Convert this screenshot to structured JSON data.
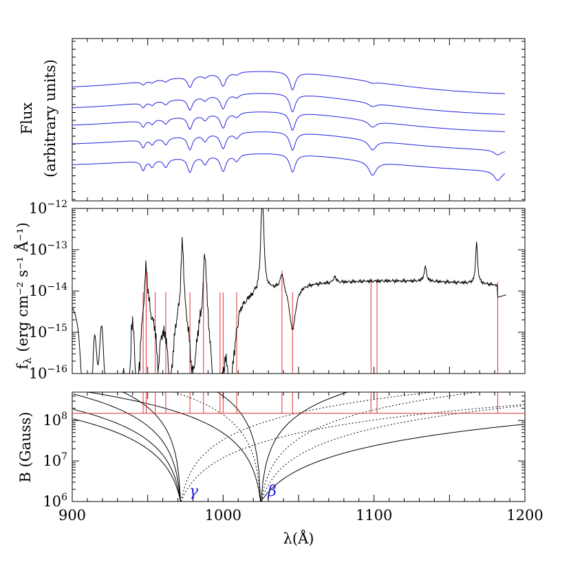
{
  "chart_data": [
    {
      "type": "line",
      "panel": "model-spectra",
      "ylabel_line1": "Flux",
      "ylabel_line2": "(arbitrary units)",
      "xlim": [
        900,
        1200
      ],
      "series_count": 5,
      "series_color": "#2020e0",
      "features_A": [
        947,
        953,
        962,
        978,
        988,
        1000,
        1009,
        1046,
        1099,
        1182
      ]
    },
    {
      "type": "line",
      "panel": "observed-spectrum",
      "ylabel_main": "f",
      "ylabel_sub": "λ",
      "ylabel_rest": "(erg cm⁻² s⁻¹ Å⁻¹)",
      "yscale": "log",
      "ylim": [
        1e-16,
        1e-12
      ],
      "ytick_labels": [
        {
          "base": "10",
          "exp": "−16"
        },
        {
          "base": "10",
          "exp": "−15"
        },
        {
          "base": "10",
          "exp": "−14"
        },
        {
          "base": "10",
          "exp": "−13"
        },
        {
          "base": "10",
          "exp": "−12"
        }
      ],
      "emission_peaks_A": [
        949,
        973,
        988,
        1026,
        1039,
        1134,
        1168
      ],
      "line_markers_A": [
        947,
        949,
        955,
        962,
        978,
        987,
        998,
        1000,
        1009,
        1039,
        1046,
        1098,
        1102,
        1182
      ],
      "marker_color": "#e03030"
    },
    {
      "type": "line",
      "panel": "magnetic-field",
      "ylabel": "B (Gauss)",
      "yscale": "log",
      "ylim": [
        1000000.0,
        500000000.0
      ],
      "ytick_labels": [
        {
          "base": "10",
          "exp": "6"
        },
        {
          "base": "10",
          "exp": "7"
        },
        {
          "base": "10",
          "exp": "8"
        }
      ],
      "reference_field_G": 150000000.0,
      "annotations": [
        {
          "text": "γ",
          "x_A": 972
        },
        {
          "text": "β",
          "x_A": 1025
        }
      ],
      "xlabel": "λ(Å)",
      "xlim": [
        900,
        1200
      ],
      "xticks": [
        900,
        1000,
        1100,
        1200
      ]
    }
  ]
}
